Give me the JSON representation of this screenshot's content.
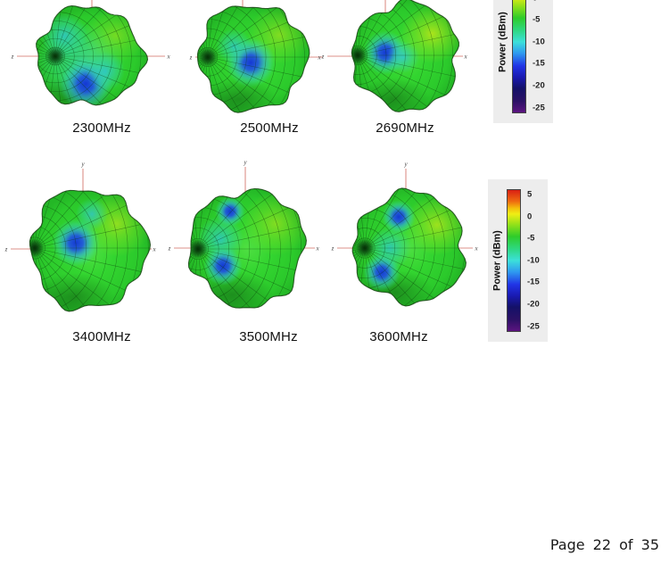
{
  "page": {
    "number_text": "Page 22 of 35"
  },
  "colorbar": {
    "title": "Power  (dBm)",
    "ticks": [
      "5",
      "0",
      "-5",
      "-10",
      "-15",
      "-20",
      "-25"
    ]
  },
  "figures": [
    {
      "label": "2300MHz",
      "axis_z": "z",
      "axis_x": "x",
      "axis_y": ""
    },
    {
      "label": "2500MHz",
      "axis_z": "z",
      "axis_x": "x",
      "axis_y": ""
    },
    {
      "label": "2690MHz",
      "axis_z": "z",
      "axis_x": "x",
      "axis_y": ""
    },
    {
      "label": "3400MHz",
      "axis_z": "z",
      "axis_x": "x",
      "axis_y": "y"
    },
    {
      "label": "3500MHz",
      "axis_z": "z",
      "axis_x": "x",
      "axis_y": "y"
    },
    {
      "label": "3600MHz",
      "axis_z": "z",
      "axis_x": "x",
      "axis_y": "y"
    }
  ],
  "chart_data": {
    "type": "3d-surface-radiation-pattern",
    "title": "",
    "figures": [
      "2300MHz",
      "2500MHz",
      "2690MHz",
      "3400MHz",
      "3500MHz",
      "3600MHz"
    ],
    "colorbar": {
      "label": "Power (dBm)",
      "ticks": [
        5,
        0,
        -5,
        -10,
        -15,
        -20,
        -25
      ],
      "range": [
        -25,
        5
      ]
    },
    "axes": [
      "x",
      "y",
      "z"
    ],
    "layout": {
      "rows": 2,
      "cols": 3,
      "colorbar_position": "right-of-each-row",
      "top_colorbar_clipped": true
    }
  }
}
